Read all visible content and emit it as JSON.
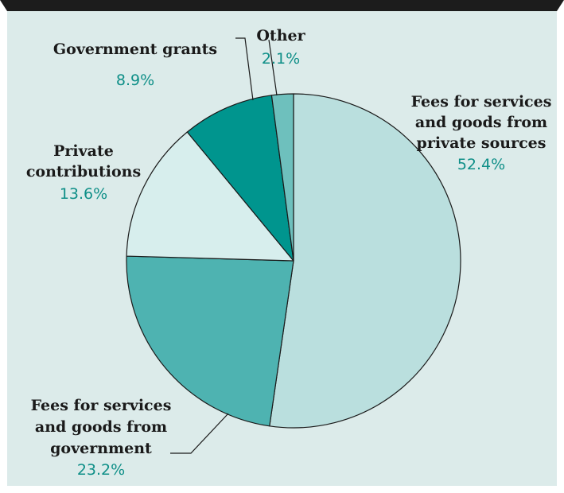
{
  "chart_data": {
    "type": "pie",
    "slices": [
      {
        "label_lines": [
          "Fees for services",
          "and goods from",
          "private sources"
        ],
        "value_text": "52.4%",
        "value": 52.4,
        "color": "#badfde"
      },
      {
        "label_lines": [
          "Fees for services",
          "and goods from",
          "government"
        ],
        "value_text": "23.2%",
        "value": 23.2,
        "color": "#4eb3b1"
      },
      {
        "label_lines": [
          "Private",
          "contributions"
        ],
        "value_text": "13.6%",
        "value": 13.6,
        "color": "#d7eeed"
      },
      {
        "label_lines": [
          "Government grants"
        ],
        "value_text": "8.9%",
        "value": 8.9,
        "color": "#00958e"
      },
      {
        "label_lines": [
          "Other"
        ],
        "value_text": "2.1%",
        "value": 2.1,
        "color": "#6ec0bd"
      }
    ],
    "start": "12 o'clock",
    "direction": "clockwise"
  },
  "colors": {
    "panel_background": "#dcebea",
    "top_rule": "#1c1c1c",
    "label_text": "#1a1a1a",
    "percent_text": "#0f8f88"
  }
}
